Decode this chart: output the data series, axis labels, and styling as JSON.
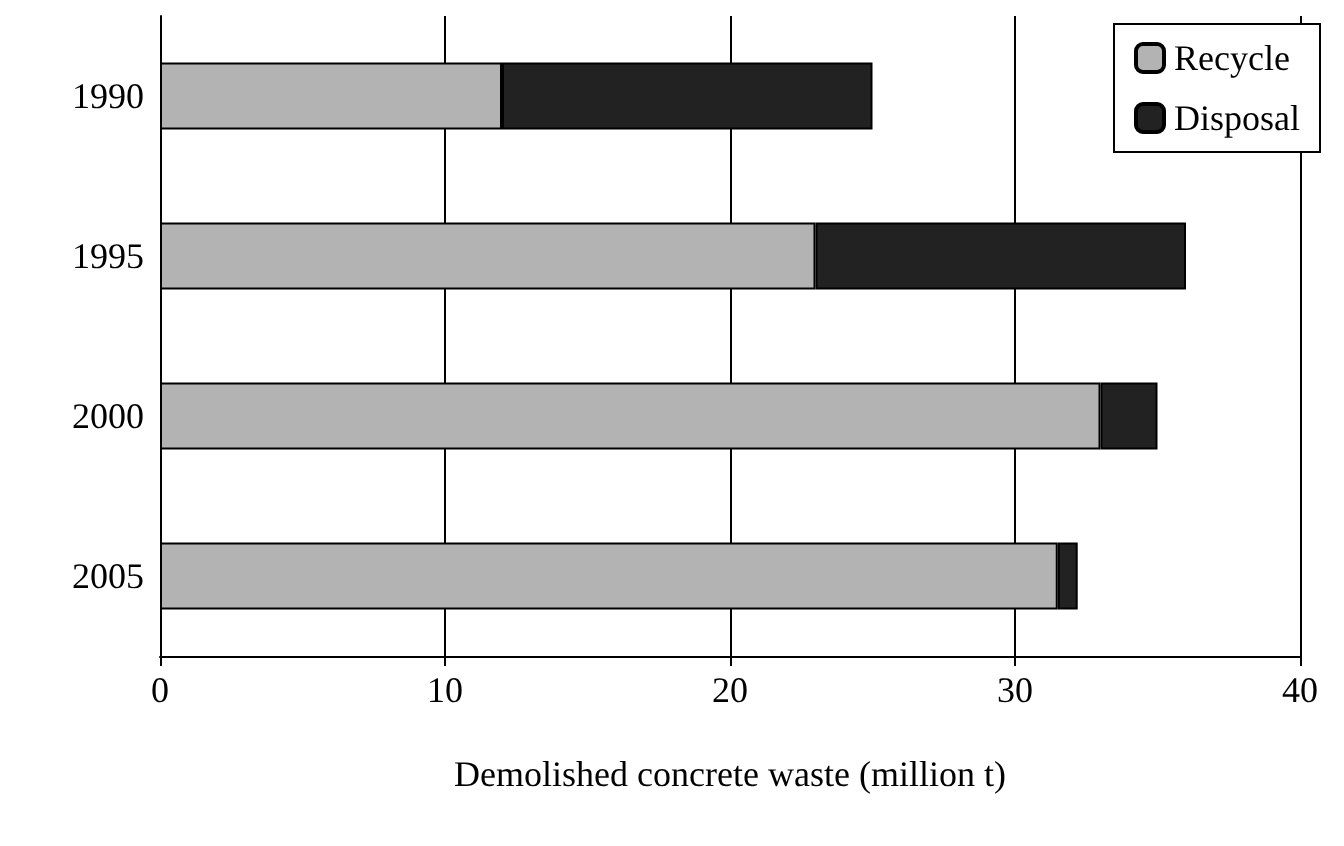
{
  "chart_data": {
    "type": "bar",
    "orientation": "horizontal",
    "stacked": true,
    "xlabel": "Demolished concrete waste (million t)",
    "categories": [
      "1990",
      "1995",
      "2000",
      "2005"
    ],
    "series": [
      {
        "name": "Recycle",
        "color": "#b3b3b3",
        "values": [
          12,
          23,
          33,
          31.5
        ]
      },
      {
        "name": "Disposal",
        "color": "#222222",
        "values": [
          13,
          13,
          2,
          0.7
        ]
      }
    ],
    "xlim": [
      0,
      40
    ],
    "xticks": [
      0,
      10,
      20,
      30,
      40
    ],
    "grid": "x",
    "legend": "top right"
  }
}
